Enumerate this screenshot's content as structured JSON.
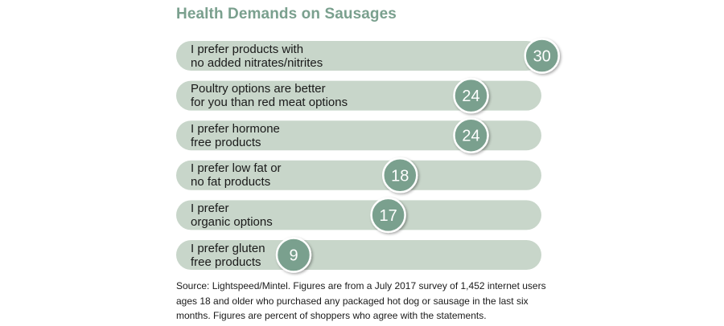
{
  "title": "Health Demands on Sausages",
  "colors": {
    "title": "#7aa08e",
    "bar": "#c8d6ca",
    "badge": "#7aa08e",
    "badge_border": "#ffffff"
  },
  "chart_data": {
    "type": "bar",
    "orientation": "horizontal",
    "title": "Health Demands on Sausages",
    "categories": [
      [
        "I prefer products with",
        "no added nitrates/nitrites"
      ],
      [
        "Poultry options are better",
        "for you than red meat options"
      ],
      [
        "I prefer hormone",
        "free products"
      ],
      [
        "I prefer low fat or",
        "no fat products"
      ],
      [
        "I prefer",
        "organic options"
      ],
      [
        "I prefer gluten",
        "free products"
      ]
    ],
    "values": [
      30,
      24,
      24,
      18,
      17,
      9
    ],
    "value_labels": [
      "30",
      "24",
      "24",
      "18",
      "17",
      "9"
    ]
  },
  "source": "Source: Lightspeed/Mintel. Figures are from a July 2017 survey of 1,452 internet users ages 18 and older who purchased any packaged hot dog or sausage in the last six months. Figures are percent of shoppers who agree with the statements."
}
